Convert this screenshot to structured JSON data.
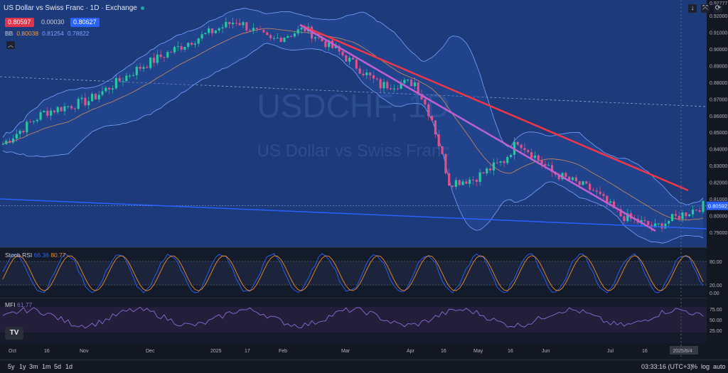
{
  "header": {
    "title": "US Dollar vs Swiss Franc · 1D · Exchange",
    "bid": "0.80597",
    "spread": "0.00030",
    "ask": "0.80627"
  },
  "bb": {
    "label": "BB",
    "basis": "0.80038",
    "upper": "0.81254",
    "lower": "0.78822"
  },
  "stoch": {
    "label": "Stoch RSI",
    "k": "66.36",
    "d": "80.77"
  },
  "mfi": {
    "label": "MFI",
    "value": "61.77"
  },
  "watermark": {
    "symbol": "USDCHF, 1D",
    "name": "US Dollar vs Swiss Franc"
  },
  "price_axis": {
    "labels": [
      "0.92777",
      "0.92000",
      "0.91000",
      "0.90000",
      "0.89000",
      "0.88000",
      "0.87000",
      "0.86000",
      "0.85000",
      "0.84000",
      "0.83000",
      "0.82000",
      "0.81000",
      "0.80000",
      "0.79000"
    ],
    "current": "0.80592"
  },
  "stoch_axis": [
    "80.00",
    "20.00",
    "0.00"
  ],
  "mfi_axis": [
    "75.00",
    "50.00",
    "25.00"
  ],
  "time_axis": [
    "Oct",
    "16",
    "Nov",
    "Dec",
    "2025",
    "17",
    "Feb",
    "Mar",
    "Apr",
    "16",
    "May",
    "16",
    "Jun",
    "Jul",
    "16",
    "2025/8/4"
  ],
  "bottombar": {
    "ranges": [
      "5y",
      "1y",
      "3m",
      "1m",
      "5d",
      "1d"
    ],
    "clock": "03:33:16 (UTC+3)",
    "percent": "%",
    "log": "log",
    "auto": "auto"
  },
  "colors": {
    "bg": "#131722",
    "chart_bg": "#1d3a7a",
    "up": "#26a69a",
    "down": "#ef5350",
    "trend_red": "#f23645",
    "trend_purple": "#c060d0",
    "support_blue": "#2962ff",
    "bb_line": "#7aa2ff"
  },
  "icons": {
    "dropdown": "arrow-down-icon",
    "collapse": "chevron-up-icon",
    "maximize": "maximize-icon",
    "settings": "settings-icon",
    "logo": "tradingview-logo-icon"
  }
}
